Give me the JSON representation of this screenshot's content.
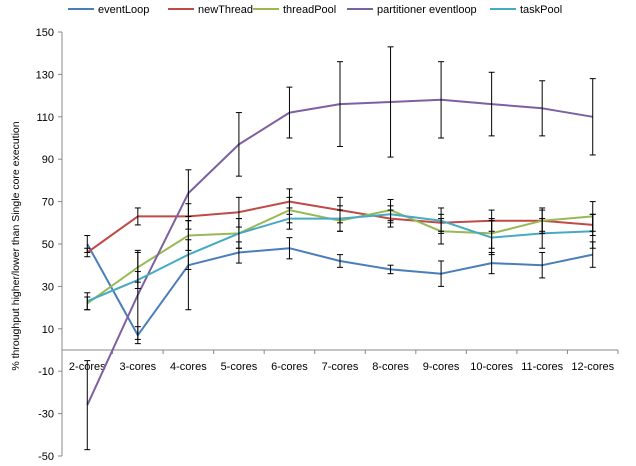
{
  "chart_data": {
    "type": "line",
    "title": "",
    "xlabel": "",
    "ylabel": "% throughput higher/lower than Single core execution",
    "ylim": [
      -50,
      150
    ],
    "yticks": [
      150,
      130,
      110,
      90,
      70,
      50,
      30,
      10,
      -10,
      -30,
      -50
    ],
    "grid": false,
    "legend_position": "top",
    "categories": [
      "2-cores",
      "3-cores",
      "4-cores",
      "5-cores",
      "6-cores",
      "7-cores",
      "8-cores",
      "9-cores",
      "10-cores",
      "11-cores",
      "12-cores"
    ],
    "series": [
      {
        "name": "eventLoop",
        "color": "#4a7ebb",
        "values": [
          50,
          7,
          40,
          46,
          48,
          42,
          38,
          36,
          41,
          40,
          45
        ],
        "error": [
          4,
          4,
          21,
          5,
          5,
          3,
          2,
          6,
          5,
          6,
          6
        ]
      },
      {
        "name": "newThread",
        "color": "#be4b48",
        "values": [
          46,
          63,
          63,
          65,
          70,
          66,
          62,
          60,
          61,
          61,
          59
        ],
        "error": [
          2,
          4,
          6,
          7,
          6,
          6,
          4,
          4,
          5,
          5,
          5
        ]
      },
      {
        "name": "threadPool",
        "color": "#98b954",
        "values": [
          22,
          39,
          54,
          55,
          66,
          61,
          66,
          56,
          55,
          61,
          63
        ],
        "error": [
          3,
          7,
          7,
          7,
          6,
          5,
          5,
          6,
          7,
          6,
          7
        ]
      },
      {
        "name": "partitioner eventloop",
        "color": "#7d60a0",
        "values": [
          -26,
          26,
          74,
          97,
          112,
          116,
          117,
          118,
          116,
          114,
          110
        ],
        "error": [
          21,
          21,
          11,
          15,
          12,
          20,
          26,
          18,
          15,
          13,
          18
        ]
      },
      {
        "name": "taskPool",
        "color": "#46aac5",
        "values": [
          23,
          33,
          45,
          55,
          62,
          62,
          64,
          61,
          53,
          55,
          56
        ],
        "error": [
          4,
          4,
          7,
          7,
          5,
          6,
          4,
          6,
          8,
          7,
          8
        ]
      }
    ]
  }
}
